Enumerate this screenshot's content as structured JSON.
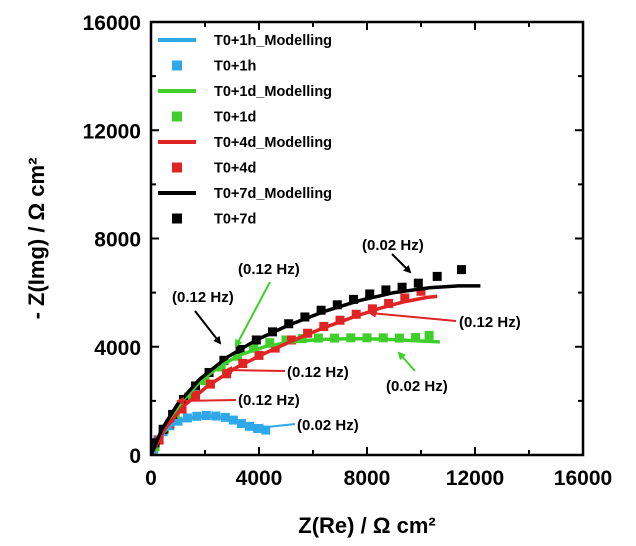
{
  "chart_data": {
    "type": "scatter",
    "xlabel": "Z(Re) / Ω cm²",
    "ylabel": "- Z(Img) / Ω cm²",
    "xlim": [
      0,
      16000
    ],
    "ylim": [
      0,
      16000
    ],
    "xticks": [
      0,
      4000,
      8000,
      12000,
      16000
    ],
    "yticks": [
      0,
      4000,
      8000,
      12000,
      16000
    ],
    "xtick_labels": [
      "0",
      "4000",
      "8000",
      "12000",
      "16000"
    ],
    "ytick_labels": [
      "0",
      "4000",
      "8000",
      "12000",
      "16000"
    ],
    "grid": false,
    "legend_position": "top-left",
    "series": [
      {
        "name": "T0+1h_Modelling",
        "kind": "line",
        "color": "#2fa8ea",
        "points": [
          [
            0,
            0
          ],
          [
            150,
            380
          ],
          [
            350,
            720
          ],
          [
            600,
            980
          ],
          [
            900,
            1180
          ],
          [
            1300,
            1330
          ],
          [
            1750,
            1420
          ],
          [
            2200,
            1440
          ],
          [
            2650,
            1380
          ],
          [
            3050,
            1250
          ],
          [
            3450,
            1110
          ],
          [
            3850,
            980
          ],
          [
            4200,
            900
          ]
        ]
      },
      {
        "name": "T0+1h",
        "kind": "marker",
        "color": "#2fa8ea",
        "points": [
          [
            90,
            200
          ],
          [
            250,
            560
          ],
          [
            450,
            860
          ],
          [
            700,
            1080
          ],
          [
            1000,
            1250
          ],
          [
            1350,
            1370
          ],
          [
            1700,
            1430
          ],
          [
            2050,
            1460
          ],
          [
            2400,
            1440
          ],
          [
            2750,
            1390
          ],
          [
            3050,
            1290
          ],
          [
            3350,
            1160
          ],
          [
            3650,
            1060
          ],
          [
            3950,
            980
          ],
          [
            4250,
            920
          ]
        ]
      },
      {
        "name": "T0+1d_Modelling",
        "kind": "line",
        "color": "#3fcf2a",
        "points": [
          [
            0,
            0
          ],
          [
            300,
            650
          ],
          [
            700,
            1350
          ],
          [
            1200,
            2050
          ],
          [
            1800,
            2700
          ],
          [
            2500,
            3250
          ],
          [
            3300,
            3700
          ],
          [
            4200,
            4000
          ],
          [
            5200,
            4180
          ],
          [
            6300,
            4270
          ],
          [
            7500,
            4300
          ],
          [
            8700,
            4280
          ],
          [
            9800,
            4220
          ],
          [
            10700,
            4180
          ]
        ]
      },
      {
        "name": "T0+1d",
        "kind": "marker",
        "color": "#3fcf2a",
        "points": [
          [
            150,
            300
          ],
          [
            500,
            950
          ],
          [
            900,
            1500
          ],
          [
            1400,
            2150
          ],
          [
            2000,
            2750
          ],
          [
            2600,
            3250
          ],
          [
            3200,
            3650
          ],
          [
            3800,
            3950
          ],
          [
            4400,
            4150
          ],
          [
            5000,
            4250
          ],
          [
            5600,
            4300
          ],
          [
            6200,
            4320
          ],
          [
            6800,
            4320
          ],
          [
            7400,
            4330
          ],
          [
            8000,
            4330
          ],
          [
            8600,
            4330
          ],
          [
            9200,
            4320
          ],
          [
            9800,
            4340
          ],
          [
            10300,
            4420
          ]
        ]
      },
      {
        "name": "T0+4d_Modelling",
        "kind": "line",
        "color": "#e02424",
        "points": [
          [
            0,
            0
          ],
          [
            500,
            950
          ],
          [
            1200,
            1800
          ],
          [
            2100,
            2550
          ],
          [
            3100,
            3200
          ],
          [
            4200,
            3750
          ],
          [
            5300,
            4250
          ],
          [
            6400,
            4700
          ],
          [
            7500,
            5100
          ],
          [
            8500,
            5430
          ],
          [
            9400,
            5670
          ],
          [
            10200,
            5820
          ],
          [
            10600,
            5860
          ]
        ]
      },
      {
        "name": "T0+4d",
        "kind": "marker",
        "color": "#e02424",
        "points": [
          [
            300,
            550
          ],
          [
            700,
            1150
          ],
          [
            1150,
            1700
          ],
          [
            1650,
            2200
          ],
          [
            2200,
            2620
          ],
          [
            2800,
            3000
          ],
          [
            3400,
            3380
          ],
          [
            4000,
            3680
          ],
          [
            4600,
            3950
          ],
          [
            5200,
            4250
          ],
          [
            5800,
            4500
          ],
          [
            6400,
            4750
          ],
          [
            7000,
            4980
          ],
          [
            7600,
            5200
          ],
          [
            8200,
            5400
          ],
          [
            8800,
            5600
          ],
          [
            9400,
            5800
          ],
          [
            10000,
            6050
          ]
        ]
      },
      {
        "name": "T0+7d_Modelling",
        "kind": "line",
        "color": "#000000",
        "points": [
          [
            0,
            0
          ],
          [
            400,
            950
          ],
          [
            1000,
            1900
          ],
          [
            1800,
            2800
          ],
          [
            2800,
            3600
          ],
          [
            3900,
            4250
          ],
          [
            5100,
            4800
          ],
          [
            6400,
            5300
          ],
          [
            7700,
            5700
          ],
          [
            9000,
            6000
          ],
          [
            10300,
            6180
          ],
          [
            11400,
            6250
          ],
          [
            12200,
            6250
          ]
        ]
      },
      {
        "name": "T0+7d",
        "kind": "marker",
        "color": "#000000",
        "points": [
          [
            150,
            450
          ],
          [
            450,
            950
          ],
          [
            800,
            1500
          ],
          [
            1200,
            2050
          ],
          [
            1650,
            2550
          ],
          [
            2150,
            3050
          ],
          [
            2700,
            3500
          ],
          [
            3300,
            3900
          ],
          [
            3900,
            4250
          ],
          [
            4500,
            4550
          ],
          [
            5100,
            4850
          ],
          [
            5700,
            5100
          ],
          [
            6300,
            5350
          ],
          [
            6900,
            5550
          ],
          [
            7500,
            5750
          ],
          [
            8100,
            5950
          ],
          [
            8700,
            6100
          ],
          [
            9300,
            6200
          ],
          [
            9900,
            6350
          ],
          [
            10600,
            6600
          ],
          [
            11500,
            6850
          ]
        ]
      }
    ],
    "annotations": [
      {
        "text": "(0.02 Hz)"
      },
      {
        "text": "(0.12 Hz)"
      },
      {
        "text": "(0.12 Hz)"
      },
      {
        "text": "(0.12 Hz)"
      },
      {
        "text": "(0.12 Hz)"
      },
      {
        "text": "(0.02 Hz)"
      },
      {
        "text": "(0.12 Hz)"
      },
      {
        "text": "(0.02 Hz)"
      }
    ]
  }
}
